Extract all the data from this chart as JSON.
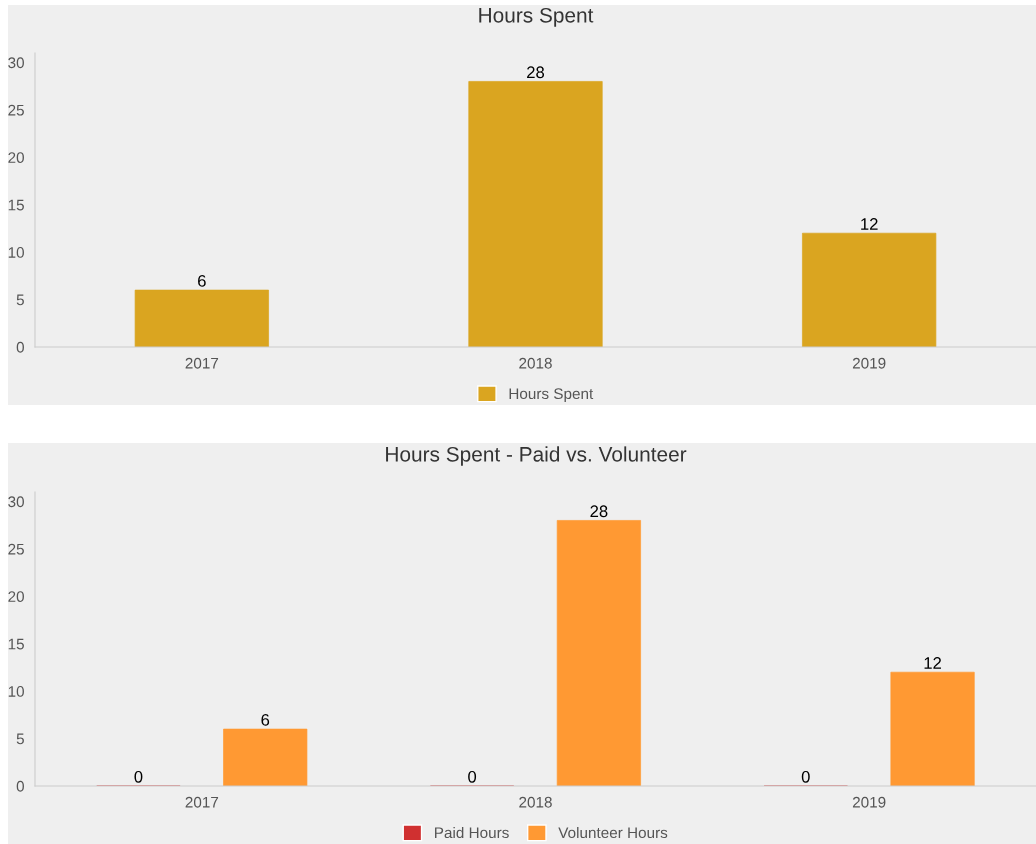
{
  "chart_data": [
    {
      "type": "bar",
      "title": "Hours Spent",
      "categories": [
        "2017",
        "2018",
        "2019"
      ],
      "series": [
        {
          "name": "Hours Spent",
          "color": "#daa520",
          "values": [
            6,
            28,
            12
          ]
        }
      ],
      "ylim": [
        0,
        31
      ],
      "yticks": [
        0,
        5,
        10,
        15,
        20,
        25,
        30
      ],
      "data_labels": true,
      "legend": "bottom",
      "grid": false
    },
    {
      "type": "bar",
      "title": "Hours Spent - Paid vs. Volunteer",
      "categories": [
        "2017",
        "2018",
        "2019"
      ],
      "series": [
        {
          "name": "Paid Hours",
          "color": "#d03030",
          "values": [
            0,
            0,
            0
          ]
        },
        {
          "name": "Volunteer Hours",
          "color": "#ff9933",
          "values": [
            6,
            28,
            12
          ]
        }
      ],
      "ylim": [
        0,
        31
      ],
      "yticks": [
        0,
        5,
        10,
        15,
        20,
        25,
        30
      ],
      "data_labels": true,
      "legend": "bottom",
      "grid": false
    }
  ]
}
